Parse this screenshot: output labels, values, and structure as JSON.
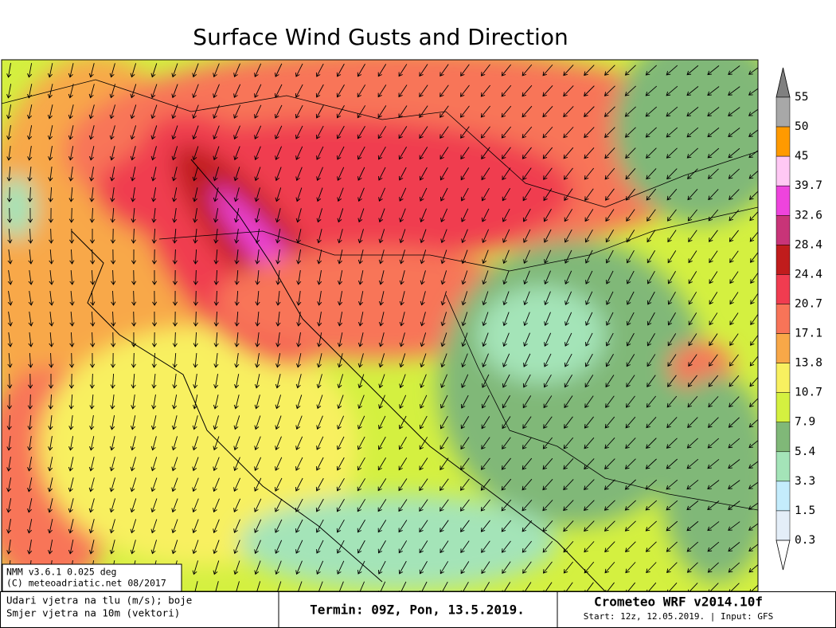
{
  "title": "Surface Wind Gusts and Direction",
  "colorbar": {
    "levels": [
      55,
      50,
      45,
      39.7,
      32.6,
      28.4,
      24.4,
      20.7,
      17.1,
      13.8,
      10.7,
      7.9,
      5.4,
      3.3,
      1.5,
      0.3
    ],
    "colors": [
      "#808080",
      "#a8a8a8",
      "#ff9a00",
      "#ffc8f4",
      "#ee44dd",
      "#c83478",
      "#c01c1c",
      "#f03c50",
      "#f87458",
      "#f8a848",
      "#f8f060",
      "#d4f040",
      "#80b878",
      "#a4e4b8",
      "#c4ecfc",
      "#e4eef8",
      "#ffffff"
    ]
  },
  "info_box": {
    "lines": [
      "NMM v3.6.1 0.025 deg",
      "(C) meteoadriatic.net 08/2017"
    ]
  },
  "footer": {
    "left": {
      "lines": [
        "Udari vjetra na tlu (m/s); boje",
        "Smjer vjetra na 10m (vektori)"
      ]
    },
    "center": "Termin: 09Z, Pon, 13.5.2019.",
    "right": {
      "title": "Crometeo WRF v2014.10f",
      "subtitle": "Start: 12z, 12.05.2019. | Input: GFS"
    }
  }
}
